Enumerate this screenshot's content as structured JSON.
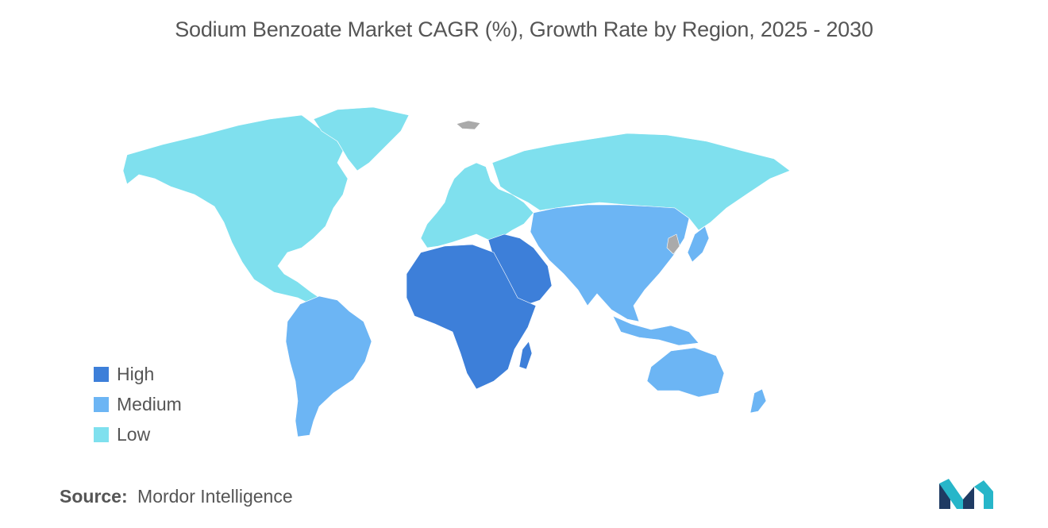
{
  "title": "Sodium Benzoate Market CAGR (%), Growth Rate by Region, 2025 - 2030",
  "legend": [
    {
      "label": "High",
      "level": "high",
      "color": "#3d7fd9"
    },
    {
      "label": "Medium",
      "level": "medium",
      "color": "#6cb5f4"
    },
    {
      "label": "Low",
      "level": "low",
      "color": "#7fe0ee"
    }
  ],
  "no_data_color": "#aaaaaa",
  "regions": [
    {
      "region": "north-america",
      "level": "low"
    },
    {
      "region": "europe",
      "level": "low"
    },
    {
      "region": "russia",
      "level": "low"
    },
    {
      "region": "south-america",
      "level": "medium"
    },
    {
      "region": "asia-pacific",
      "level": "medium"
    },
    {
      "region": "australia",
      "level": "medium"
    },
    {
      "region": "middle-east",
      "level": "high"
    },
    {
      "region": "africa",
      "level": "high"
    }
  ],
  "source": {
    "label": "Source:",
    "text": "Mordor Intelligence"
  },
  "logo_icon": "mordor-intelligence-logo-icon"
}
